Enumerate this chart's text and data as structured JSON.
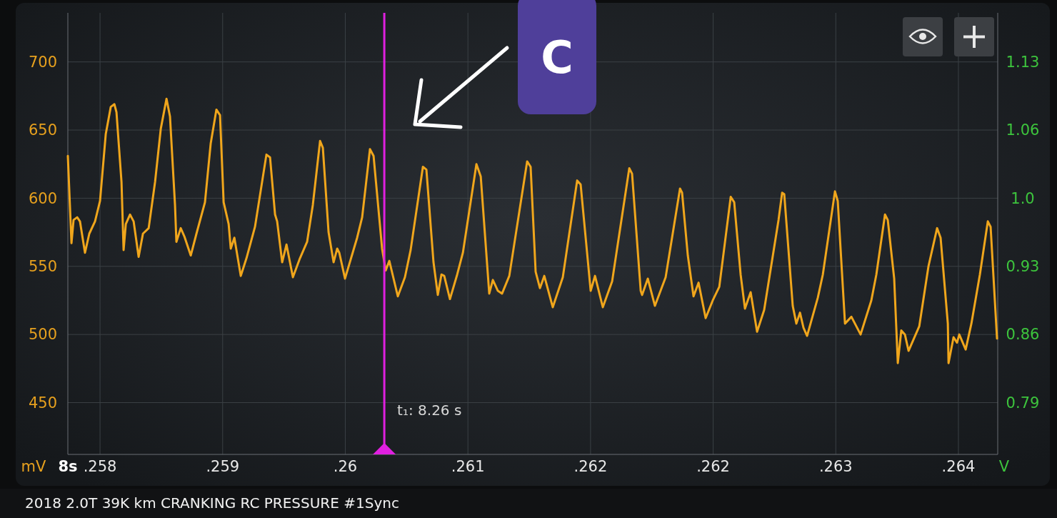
{
  "chart_data": {
    "type": "line",
    "xlabel": "8s",
    "ylabel": "mV",
    "y2label": "V",
    "x": [
      0.257769,
      0.257795,
      0.25781,
      0.257836,
      0.257856,
      0.257892,
      0.257923,
      0.257964,
      0.258,
      0.258041,
      0.258077,
      0.258103,
      0.258118,
      0.258154,
      0.258169,
      0.258185,
      0.258215,
      0.258241,
      0.258277,
      0.258308,
      0.258349,
      0.258395,
      0.258436,
      0.258477,
      0.258502,
      0.258538,
      0.258548,
      0.258579,
      0.258605,
      0.258651,
      0.258692,
      0.258753,
      0.258794,
      0.258835,
      0.258861,
      0.258887,
      0.258923,
      0.258938,
      0.258964,
      0.25901,
      0.259051,
      0.259112,
      0.259194,
      0.25922,
      0.259256,
      0.259271,
      0.259307,
      0.259338,
      0.259384,
      0.259435,
      0.259486,
      0.259527,
      0.259579,
      0.259599,
      0.25964,
      0.259676,
      0.259702,
      0.259717,
      0.259758,
      0.259845,
      0.259881,
      0.259937,
      0.259963,
      0.260024,
      0.26005,
      0.260076,
      0.260137,
      0.260188,
      0.260229,
      0.260317,
      0.260342,
      0.260393,
      0.260424,
      0.26045,
      0.26047,
      0.260511,
      0.260563,
      0.260604,
      0.260701,
      0.260732,
      0.260793,
      0.260819,
      0.260855,
      0.260885,
      0.260937,
      0.261065,
      0.26109,
      0.261126,
      0.261157,
      0.261188,
      0.261249,
      0.261321,
      0.261424,
      0.261449,
      0.261521,
      0.261552,
      0.261608,
      0.261675,
      0.261798,
      0.261818,
      0.26188,
      0.26189,
      0.261931,
      0.261982,
      0.262059,
      0.262162,
      0.262177,
      0.262218,
      0.262259,
      0.262295,
      0.262346,
      0.262397,
      0.262444,
      0.262526,
      0.262551,
      0.262597,
      0.262628,
      0.262669,
      0.262715,
      0.262766,
      0.262869,
      0.262895,
      0.26291,
      0.262971,
      0.262997,
      0.263023,
      0.263048,
      0.263074,
      0.263151,
      0.263187,
      0.263274,
      0.263294,
      0.263346,
      0.263392,
      0.263458,
      0.263535,
      0.263571,
      0.263633,
      0.263653,
      0.263699,
      0.263725,
      0.26375,
      0.263776,
      0.263802,
      0.263879,
      0.263945,
      0.264007,
      0.264032,
      0.264084,
      0.264089,
      0.264125,
      0.26415,
      0.264166,
      0.264212,
      0.264253,
      0.264314,
      0.264371,
      0.264391,
      0.264437
    ],
    "series": [
      {
        "color": "#f0a61c",
        "values": [
          631,
          567,
          584,
          586,
          583,
          560,
          574,
          583,
          598,
          647,
          667,
          669,
          663,
          612,
          562,
          581,
          588,
          583,
          557,
          574,
          578,
          612,
          651,
          673,
          660,
          595,
          568,
          578,
          572,
          558,
          574,
          597,
          640,
          665,
          661,
          597,
          581,
          563,
          571,
          543,
          556,
          579,
          632,
          630,
          588,
          583,
          553,
          566,
          542,
          556,
          568,
          595,
          642,
          637,
          575,
          553,
          563,
          560,
          541,
          571,
          586,
          636,
          631,
          563,
          547,
          554,
          528,
          542,
          562,
          623,
          621,
          553,
          529,
          544,
          543,
          526,
          544,
          560,
          625,
          616,
          530,
          540,
          532,
          530,
          543,
          627,
          623,
          546,
          534,
          543,
          520,
          542,
          613,
          610,
          532,
          543,
          520,
          539,
          622,
          618,
          532,
          529,
          541,
          521,
          542,
          607,
          604,
          558,
          528,
          538,
          512,
          525,
          535,
          601,
          597,
          544,
          519,
          531,
          502,
          518,
          584,
          604,
          603,
          521,
          508,
          516,
          505,
          499,
          527,
          544,
          605,
          598,
          508,
          513,
          500,
          525,
          544,
          588,
          584,
          541,
          479,
          503,
          500,
          488,
          506,
          550,
          578,
          571,
          508,
          479,
          498,
          494,
          500,
          489,
          508,
          544,
          583,
          579,
          497
        ]
      }
    ],
    "xlim": [
      0.257769,
      0.264442
    ],
    "xticks": [
      {
        "value": 0.258,
        "label": ".258"
      },
      {
        "value": 0.25888,
        "label": ".259"
      },
      {
        "value": 0.25976,
        "label": ".26"
      },
      {
        "value": 0.26064,
        "label": ".261"
      },
      {
        "value": 0.26152,
        "label": ".262"
      },
      {
        "value": 0.2624,
        "label": ".262"
      },
      {
        "value": 0.26328,
        "label": ".263"
      },
      {
        "value": 0.26416,
        "label": ".264"
      }
    ],
    "ylim": [
      412,
      736
    ],
    "yticks": [
      450,
      500,
      550,
      600,
      650,
      700
    ],
    "y2lim": [
      0.7383,
      1.179
    ],
    "y2ticks": [
      0.79,
      {
        "value": 0.858,
        "label": "0.86"
      },
      {
        "value": 0.926,
        "label": "0.93"
      },
      {
        "value": 0.994,
        "label": "1.0"
      },
      {
        "value": 1.062,
        "label": "1.06"
      },
      1.13
    ],
    "grid": true,
    "ref_lines": [
      {
        "axis": "x",
        "value": 0.26004,
        "color": "#e020e0"
      }
    ],
    "annotations": [
      "C",
      "2018 2.0T 39K km CRANKING RC PRESSURE #1Sync",
      "t₁: 8.26 s"
    ]
  }
}
